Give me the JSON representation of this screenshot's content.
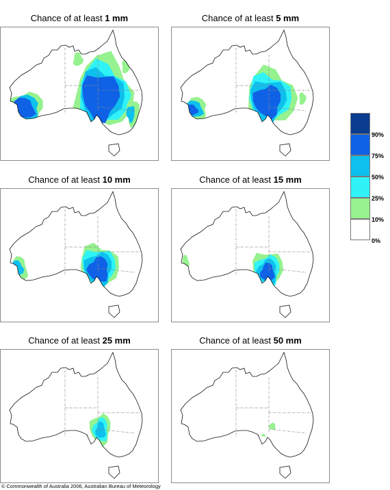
{
  "panels": [
    {
      "title_prefix": "Chance of at least",
      "amount": "1 mm",
      "level": 1
    },
    {
      "title_prefix": "Chance of at least",
      "amount": "5 mm",
      "level": 2
    },
    {
      "title_prefix": "Chance of at least",
      "amount": "10 mm",
      "level": 3
    },
    {
      "title_prefix": "Chance of at least",
      "amount": "15 mm",
      "level": 4
    },
    {
      "title_prefix": "Chance of at least",
      "amount": "25 mm",
      "level": 5
    },
    {
      "title_prefix": "Chance of at least",
      "amount": "50 mm",
      "level": 6
    }
  ],
  "legend": {
    "ticks": [
      "90%",
      "75%",
      "50%",
      "25%",
      "10%",
      "0%"
    ],
    "classes": [
      {
        "range": "90-100%",
        "color": "#0a3d8f"
      },
      {
        "range": "75-90%",
        "color": "#0f62e6"
      },
      {
        "range": "50-75%",
        "color": "#0ec0ee"
      },
      {
        "range": "25-50%",
        "color": "#2ff3f6"
      },
      {
        "range": "10-25%",
        "color": "#95f28f"
      },
      {
        "range": "0-10%",
        "color": "#ffffff"
      }
    ]
  },
  "copyright": "© Commonwealth of Australia 2006, Australian Bureau of Meteorology"
}
